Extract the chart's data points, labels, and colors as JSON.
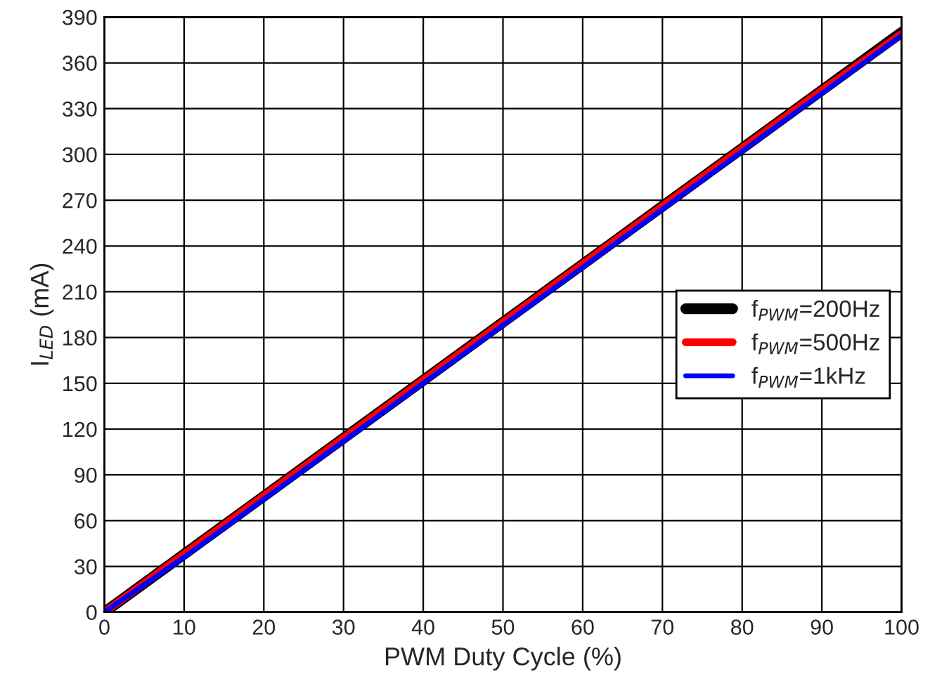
{
  "chart_data": {
    "type": "line",
    "xlabel": "PWM Duty Cycle (%)",
    "ylabel": "I$_{LED}$ (mA)",
    "x": [
      0,
      10,
      20,
      30,
      40,
      50,
      60,
      70,
      80,
      90,
      100
    ],
    "series": [
      {
        "name": "f$_{PWM}$=200Hz",
        "color": "#000000",
        "values": [
          0,
          38,
          76,
          114,
          152,
          190,
          228,
          266,
          304,
          342,
          380
        ]
      },
      {
        "name": "f$_{PWM}$=500Hz",
        "color": "#ff0000",
        "values": [
          0,
          38,
          76,
          114,
          152,
          190,
          228,
          266,
          304,
          342,
          379
        ]
      },
      {
        "name": "f$_{PWM}$=1kHz",
        "color": "#0000ff",
        "values": [
          0,
          36,
          74,
          112,
          150,
          188,
          226,
          264,
          302,
          340,
          378
        ]
      }
    ],
    "xlim": [
      0,
      100
    ],
    "xticks": [
      0,
      10,
      20,
      30,
      40,
      50,
      60,
      70,
      80,
      90,
      100
    ],
    "ylim": [
      0,
      390
    ],
    "yticks": [
      0,
      30,
      60,
      90,
      120,
      150,
      180,
      210,
      240,
      270,
      300,
      330,
      360,
      390
    ],
    "grid": true,
    "legend": "center right",
    "line_style": "solid",
    "marker": "none"
  }
}
